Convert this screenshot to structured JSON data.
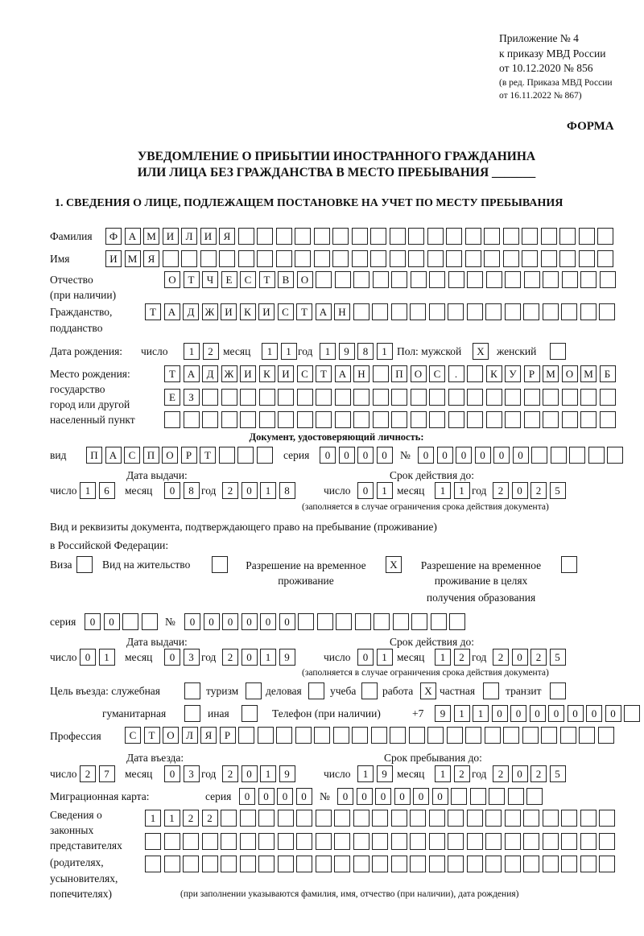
{
  "header": {
    "line1": "Приложение № 4",
    "line2": "к приказу МВД России",
    "line3": "от 10.12.2020 № 856",
    "line4": "(в ред. Приказа МВД России",
    "line5": "от 16.11.2022 № 867)"
  },
  "form_label": "ФОРМА",
  "title1": "УВЕДОМЛЕНИЕ О ПРИБЫТИИ ИНОСТРАННОГО ГРАЖДАНИНА",
  "title2": "ИЛИ ЛИЦА БЕЗ ГРАЖДАНСТВА В МЕСТО ПРЕБЫВАНИЯ _______",
  "section1": "1. СВЕДЕНИЯ О ЛИЦЕ, ПОДЛЕЖАЩЕМ ПОСТАНОВКЕ НА УЧЕТ ПО МЕСТУ ПРЕБЫВАНИЯ",
  "labels": {
    "surname": "Фамилия",
    "name": "Имя",
    "patronymic1": "Отчество",
    "patronymic2": "(при наличии)",
    "citizenship1": "Гражданство,",
    "citizenship2": "подданство",
    "dob": "Дата рождения:",
    "day": "число",
    "month": "месяц",
    "year": "год",
    "sex": "Пол: мужской",
    "female": "женский",
    "pob1": "Место рождения:",
    "pob2": "государство",
    "pob3": "город или другой",
    "pob4": "населенный пункт",
    "id_doc": "Документ, удостоверяющий личность:",
    "kind": "вид",
    "series": "серия",
    "number": "№",
    "issue_date": "Дата выдачи:",
    "valid_until": "Срок действия до:",
    "note_validity": "(заполняется в случае ограничения срока действия документа)",
    "right_doc1": "Вид и реквизиты документа, подтверждающего право на пребывание (проживание)",
    "right_doc2": "в Российской Федерации:",
    "visa": "Виза",
    "residence_permit": "Вид на жительство",
    "temp_res1": "Разрешение на временное",
    "temp_res2": "проживание",
    "temp_edu1": "Разрешение на временное",
    "temp_edu2": "проживание в целях",
    "temp_edu3": "получения образования",
    "purpose": "Цель въезда: служебная",
    "tourism": "туризм",
    "business": "деловая",
    "study": "учеба",
    "work": "работа",
    "private": "частная",
    "transit": "транзит",
    "humanitarian": "гуманитарная",
    "other": "иная",
    "phone": "Телефон (при наличии)",
    "phone_prefix": "+7",
    "profession": "Профессия",
    "entry_date": "Дата въезда:",
    "stay_until": "Срок пребывания до:",
    "migration_card": "Миграционная карта:",
    "legal1": "Сведения о",
    "legal2": "законных",
    "legal3": "представителях",
    "legal4": "(родителях,",
    "legal5": "усыновителях,",
    "legal6": "попечителях)",
    "legal_note": "(при заполнении указываются фамилия, имя, отчество (при наличии), дата рождения)"
  },
  "fields": {
    "surname": "ФАМИЛИЯ",
    "name": "ИМЯ",
    "patronymic": "ОТЧЕСТВО",
    "citizenship": "ТАДЖИКИСТАН",
    "dob_day": "12",
    "dob_month": "11",
    "dob_year": "1981",
    "sex_male": "X",
    "sex_female": "",
    "pob1": "ТАДЖИКИСТАН ПОС. КУРМОМБ",
    "pob2": "ЕЗ",
    "pob3": "",
    "id_kind": "ПАСПОРТ",
    "id_series": "0000",
    "id_number": "000000",
    "id_issue_day": "16",
    "id_issue_month": "08",
    "id_issue_year": "2018",
    "id_valid_day": "01",
    "id_valid_month": "11",
    "id_valid_year": "2025",
    "visa": "",
    "residence_permit": "",
    "temp_res": "X",
    "temp_edu": "",
    "rd_series": "00",
    "rd_number": "000000",
    "rd_issue_day": "01",
    "rd_issue_month": "03",
    "rd_issue_year": "2019",
    "rd_valid_day": "01",
    "rd_valid_month": "12",
    "rd_valid_year": "2025",
    "p_service": "",
    "p_tourism": "",
    "p_business": "",
    "p_study": "",
    "p_work": "X",
    "p_private": "",
    "p_transit": "",
    "p_humanitarian": "",
    "p_other": "",
    "phone": "9110000000",
    "profession": "СТОЛЯР",
    "entry_day": "27",
    "entry_month": "03",
    "entry_year": "2019",
    "stay_day": "19",
    "stay_month": "12",
    "stay_year": "2025",
    "mc_series": "0000",
    "mc_number": "000000",
    "legal1": "1122",
    "legal2": "",
    "legal3": ""
  }
}
